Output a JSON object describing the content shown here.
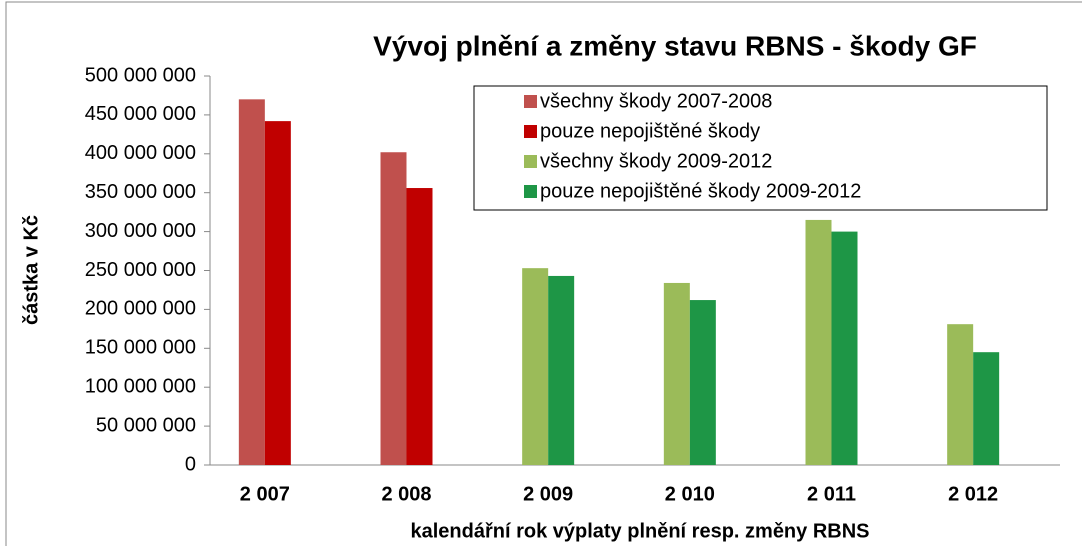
{
  "chart_data": {
    "type": "bar",
    "title": "Vývoj plnění a změny stavu RBNS - škody GF",
    "x_label": "kalendářní rok výplaty plnění resp. změny RBNS",
    "y_label": "částka v Kč",
    "categories": [
      "2 007",
      "2 008",
      "2 009",
      "2 010",
      "2 011",
      "2 012"
    ],
    "series": [
      {
        "name": "všechny škody 2007-2008",
        "color": "#c0504d",
        "values": [
          470000000,
          402000000,
          null,
          null,
          null,
          null
        ]
      },
      {
        "name": "pouze nepojištěné škody",
        "color": "#c00000",
        "values": [
          442000000,
          356000000,
          null,
          null,
          null,
          null
        ]
      },
      {
        "name": "všechny škody 2009-2012",
        "color": "#9bbb59",
        "values": [
          null,
          null,
          253000000,
          234000000,
          315000000,
          181000000
        ]
      },
      {
        "name": "pouze nepojištěné škody 2009-2012",
        "color": "#1e9646",
        "values": [
          null,
          null,
          243000000,
          212000000,
          300000000,
          145000000
        ]
      }
    ],
    "ylim": [
      0,
      500000000
    ],
    "yticks": [
      0,
      {
        "value": 50000000,
        "label": "50 000 000"
      },
      {
        "value": 100000000,
        "label": "100 000 000"
      },
      {
        "value": 150000000,
        "label": "150 000 000"
      },
      {
        "value": 200000000,
        "label": "200 000 000"
      },
      {
        "value": 250000000,
        "label": "250 000 000"
      },
      {
        "value": 300000000,
        "label": "300 000 000"
      },
      {
        "value": 350000000,
        "label": "350 000 000"
      },
      {
        "value": 400000000,
        "label": "400 000 000"
      },
      {
        "value": 450000000,
        "label": "450 000 000"
      },
      {
        "value": 500000000,
        "label": "500 000 000"
      }
    ],
    "grid": false,
    "legend": "top-right"
  }
}
